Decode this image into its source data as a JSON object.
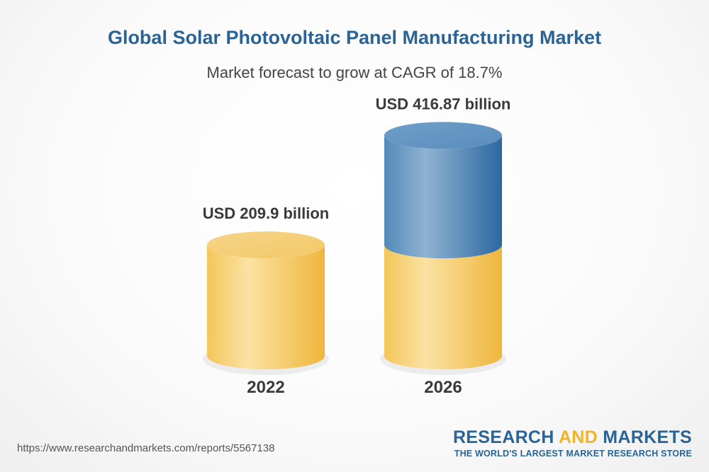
{
  "chart_data": {
    "type": "bar",
    "title": "Global Solar Photovoltaic Panel Manufacturing Market",
    "subtitle": "Market forecast to grow at CAGR of 18.7%",
    "categories": [
      "2022",
      "2026"
    ],
    "values": [
      209.9,
      416.87
    ],
    "data_labels": [
      "USD 209.9 billion",
      "USD 416.87 billion"
    ],
    "unit": "USD billion",
    "style": "3d-cylinder",
    "colors": {
      "base": "#f2c14e",
      "growth": "#3f7fb3"
    }
  },
  "footer": {
    "source_url": "https://www.researchandmarkets.com/reports/5567138",
    "brand_part1": "RESEARCH ",
    "brand_part2": "AND",
    "brand_part3": " MARKETS",
    "brand_tagline": "THE WORLD'S LARGEST MARKET RESEARCH STORE"
  },
  "colors": {
    "title": "#2a6496",
    "subtitle": "#444444",
    "brand_accent": "#f0b429"
  }
}
